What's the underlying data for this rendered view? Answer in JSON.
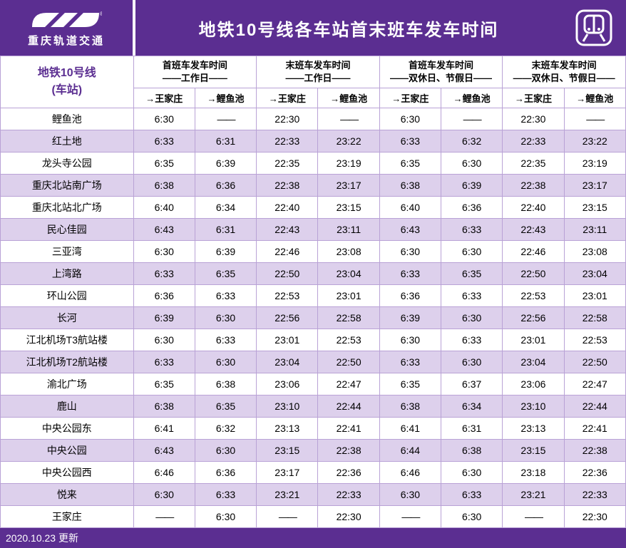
{
  "colors": {
    "brand": "#5b2e91",
    "band_even": "#ddd0ec",
    "band_odd": "#ffffff",
    "border": "#b9a2d6",
    "text_header": "#5b2e91"
  },
  "header": {
    "logo_label": "重庆轨道交通",
    "title": "地铁10号线各车站首末班车发车时间"
  },
  "table_header": {
    "station_label_line1": "地铁10号线",
    "station_label_line2": "(车站)",
    "groups": [
      {
        "line1": "首班车发车时间",
        "line2": "——工作日——"
      },
      {
        "line1": "末班车发车时间",
        "line2": "——工作日——"
      },
      {
        "line1": "首班车发车时间",
        "line2": "——双休日、节假日——"
      },
      {
        "line1": "末班车发车时间",
        "line2": "——双休日、节假日——"
      }
    ],
    "directions": [
      "→王家庄",
      "→鲤鱼池"
    ]
  },
  "dash": "——",
  "rows": [
    {
      "station": "鲤鱼池",
      "cells": [
        "6:30",
        "——",
        "22:30",
        "——",
        "6:30",
        "——",
        "22:30",
        "——"
      ]
    },
    {
      "station": "红土地",
      "cells": [
        "6:33",
        "6:31",
        "22:33",
        "23:22",
        "6:33",
        "6:32",
        "22:33",
        "23:22"
      ]
    },
    {
      "station": "龙头寺公园",
      "cells": [
        "6:35",
        "6:39",
        "22:35",
        "23:19",
        "6:35",
        "6:30",
        "22:35",
        "23:19"
      ]
    },
    {
      "station": "重庆北站南广场",
      "cells": [
        "6:38",
        "6:36",
        "22:38",
        "23:17",
        "6:38",
        "6:39",
        "22:38",
        "23:17"
      ]
    },
    {
      "station": "重庆北站北广场",
      "cells": [
        "6:40",
        "6:34",
        "22:40",
        "23:15",
        "6:40",
        "6:36",
        "22:40",
        "23:15"
      ]
    },
    {
      "station": "民心佳园",
      "cells": [
        "6:43",
        "6:31",
        "22:43",
        "23:11",
        "6:43",
        "6:33",
        "22:43",
        "23:11"
      ]
    },
    {
      "station": "三亚湾",
      "cells": [
        "6:30",
        "6:39",
        "22:46",
        "23:08",
        "6:30",
        "6:30",
        "22:46",
        "23:08"
      ]
    },
    {
      "station": "上湾路",
      "cells": [
        "6:33",
        "6:35",
        "22:50",
        "23:04",
        "6:33",
        "6:35",
        "22:50",
        "23:04"
      ]
    },
    {
      "station": "环山公园",
      "cells": [
        "6:36",
        "6:33",
        "22:53",
        "23:01",
        "6:36",
        "6:33",
        "22:53",
        "23:01"
      ]
    },
    {
      "station": "长河",
      "cells": [
        "6:39",
        "6:30",
        "22:56",
        "22:58",
        "6:39",
        "6:30",
        "22:56",
        "22:58"
      ]
    },
    {
      "station": "江北机场T3航站楼",
      "cells": [
        "6:30",
        "6:33",
        "23:01",
        "22:53",
        "6:30",
        "6:33",
        "23:01",
        "22:53"
      ]
    },
    {
      "station": "江北机场T2航站楼",
      "cells": [
        "6:33",
        "6:30",
        "23:04",
        "22:50",
        "6:33",
        "6:30",
        "23:04",
        "22:50"
      ]
    },
    {
      "station": "渝北广场",
      "cells": [
        "6:35",
        "6:38",
        "23:06",
        "22:47",
        "6:35",
        "6:37",
        "23:06",
        "22:47"
      ]
    },
    {
      "station": "鹿山",
      "cells": [
        "6:38",
        "6:35",
        "23:10",
        "22:44",
        "6:38",
        "6:34",
        "23:10",
        "22:44"
      ]
    },
    {
      "station": "中央公园东",
      "cells": [
        "6:41",
        "6:32",
        "23:13",
        "22:41",
        "6:41",
        "6:31",
        "23:13",
        "22:41"
      ]
    },
    {
      "station": "中央公园",
      "cells": [
        "6:43",
        "6:30",
        "23:15",
        "22:38",
        "6:44",
        "6:38",
        "23:15",
        "22:38"
      ]
    },
    {
      "station": "中央公园西",
      "cells": [
        "6:46",
        "6:36",
        "23:17",
        "22:36",
        "6:46",
        "6:30",
        "23:18",
        "22:36"
      ]
    },
    {
      "station": "悦来",
      "cells": [
        "6:30",
        "6:33",
        "23:21",
        "22:33",
        "6:30",
        "6:33",
        "23:21",
        "22:33"
      ]
    },
    {
      "station": "王家庄",
      "cells": [
        "——",
        "6:30",
        "——",
        "22:30",
        "——",
        "6:30",
        "——",
        "22:30"
      ]
    }
  ],
  "footer": {
    "update_text": "2020.10.23 更新"
  }
}
